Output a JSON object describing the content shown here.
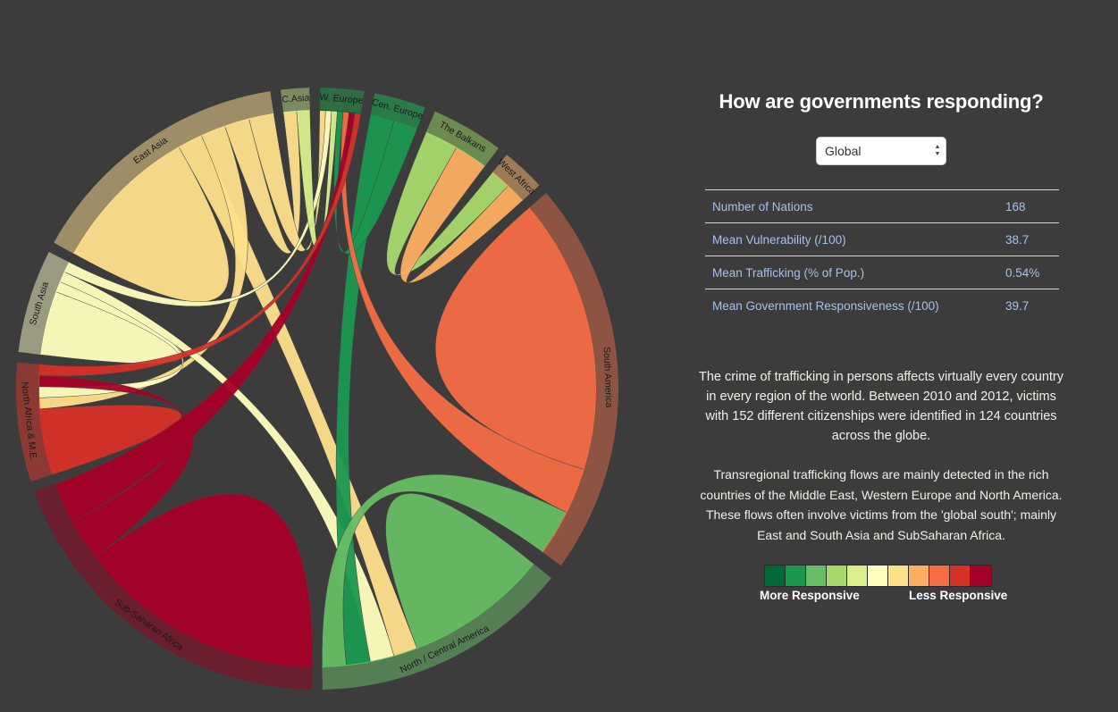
{
  "panel": {
    "title": "How are governments responding?",
    "select": {
      "value": "Global"
    },
    "stats": [
      {
        "label": "Number of Nations",
        "value": "168"
      },
      {
        "label": "Mean Vulnerability (/100)",
        "value": "38.7"
      },
      {
        "label": "Mean Trafficking (% of Pop.)",
        "value": "0.54%"
      },
      {
        "label": "Mean Government Responsiveness (/100)",
        "value": "39.7"
      }
    ],
    "paragraph_1": "The crime of trafficking in persons affects virtually every country in every region of the world. Between 2010 and 2012, victims with 152 different citizenships were identified in 124 countries across the globe.",
    "paragraph_2": "Transregional trafficking flows are mainly detected in the rich countries of the Middle East, Western Europe and North America. These flows often involve victims from the 'global south'; mainly East and South Asia and SubSaharan Africa.",
    "legend": {
      "left_label": "More Responsive",
      "right_label": "Less Responsive",
      "colors": [
        "#006837",
        "#1a9850",
        "#66bd63",
        "#a6d96a",
        "#d9ef8b",
        "#ffffbf",
        "#fee08b",
        "#fdae61",
        "#f46d43",
        "#d73027",
        "#a50026"
      ]
    }
  },
  "chart_data": {
    "type": "chord",
    "regions": [
      {
        "name": "C.Asia",
        "start_deg": 353,
        "end_deg": 358.5,
        "color": "#d9ef8b",
        "outer_color": "#7c8a64"
      },
      {
        "name": "W. Europe",
        "start_deg": 0.5,
        "end_deg": 9,
        "color": "#006837",
        "outer_color": "#2f6b43"
      },
      {
        "name": "Cen. Europe",
        "start_deg": 11,
        "end_deg": 21,
        "color": "#1a9850",
        "outer_color": "#2b7a4a"
      },
      {
        "name": "The Balkans",
        "start_deg": 23,
        "end_deg": 37,
        "color": "#a6d96a",
        "outer_color": "#6d8a50"
      },
      {
        "name": "West Africa",
        "start_deg": 39,
        "end_deg": 47.5,
        "color": "#fdae61",
        "outer_color": "#9c7a55"
      },
      {
        "name": "South America",
        "start_deg": 49.5,
        "end_deg": 126,
        "color": "#f46d43",
        "outer_color": "#8e5443"
      },
      {
        "name": "North / Central America",
        "start_deg": 129,
        "end_deg": 179,
        "color": "#66bd63",
        "outer_color": "#567e54"
      },
      {
        "name": "Sub-Saharan Africa",
        "start_deg": 181,
        "end_deg": 250,
        "color": "#a50026",
        "outer_color": "#6a1e2e"
      },
      {
        "name": "North Africa & M.E.",
        "start_deg": 252,
        "end_deg": 275,
        "color": "#d73027",
        "outer_color": "#8a3a33"
      },
      {
        "name": "South Asia",
        "start_deg": 277,
        "end_deg": 297,
        "color": "#ffffbf",
        "outer_color": "#9a9a80"
      },
      {
        "name": "East Asia",
        "start_deg": 299,
        "end_deg": 351,
        "color": "#fee08b",
        "outer_color": "#9e8e68"
      }
    ],
    "flows": [
      {
        "source": "South America",
        "target": "South America",
        "color": "#f46d43"
      },
      {
        "source": "Sub-Saharan Africa",
        "target": "Sub-Saharan Africa",
        "color": "#a50026"
      },
      {
        "source": "North / Central America",
        "target": "North / Central America",
        "color": "#66bd63"
      },
      {
        "source": "North Africa & M.E.",
        "target": "North Africa & M.E.",
        "color": "#d73027"
      },
      {
        "source": "South Asia",
        "target": "South Asia",
        "color": "#ffffbf"
      },
      {
        "source": "East Asia",
        "target": "East Asia",
        "color": "#fee08b"
      },
      {
        "source": "The Balkans",
        "target": "West Africa",
        "color": "#a6d96a"
      },
      {
        "source": "West Africa",
        "target": "The Balkans",
        "color": "#fdae61"
      },
      {
        "source": "East Asia",
        "target": "North / Central America",
        "color": "#fee08b"
      },
      {
        "source": "East Asia",
        "target": "North Africa & M.E.",
        "color": "#fee08b"
      },
      {
        "source": "East Asia",
        "target": "C.Asia",
        "color": "#fee08b"
      },
      {
        "source": "East Asia",
        "target": "W. Europe",
        "color": "#fee08b"
      },
      {
        "source": "South Asia",
        "target": "North Africa & M.E.",
        "color": "#ffffbf"
      },
      {
        "source": "South Asia",
        "target": "North / Central America",
        "color": "#ffffbf"
      },
      {
        "source": "South Asia",
        "target": "W. Europe",
        "color": "#ffffbf"
      },
      {
        "source": "C.Asia",
        "target": "W. Europe",
        "color": "#d9ef8b"
      },
      {
        "source": "Cen. Europe",
        "target": "North / Central America",
        "color": "#1a9850"
      },
      {
        "source": "Cen. Europe",
        "target": "W. Europe",
        "color": "#1a9850"
      },
      {
        "source": "South America",
        "target": "W. Europe",
        "color": "#f46d43"
      },
      {
        "source": "Sub-Saharan Africa",
        "target": "North Africa & M.E.",
        "color": "#a50026"
      },
      {
        "source": "Sub-Saharan Africa",
        "target": "W. Europe",
        "color": "#a50026"
      },
      {
        "source": "North Africa & M.E.",
        "target": "W. Europe",
        "color": "#d73027"
      },
      {
        "source": "North / Central America",
        "target": "South America",
        "color": "#66bd63"
      }
    ]
  }
}
